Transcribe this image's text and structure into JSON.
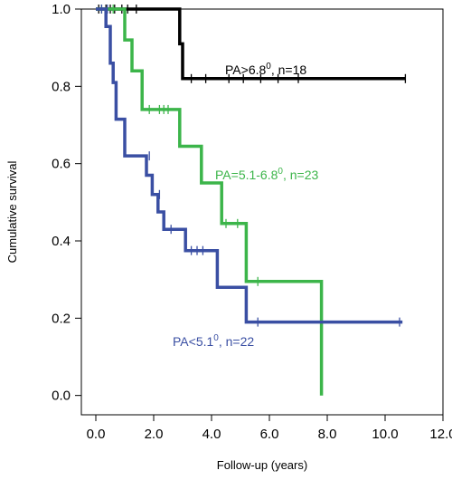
{
  "chart_data": {
    "type": "line",
    "step": true,
    "xlabel": "Follow-up (years)",
    "ylabel": "Cumulative survival",
    "xlim": [
      -0.5,
      12.0
    ],
    "ylim": [
      -0.05,
      1.0
    ],
    "x_ticks": [
      "0.0",
      "2.0",
      "4.0",
      "6.0",
      "8.0",
      "10.0",
      "12.0"
    ],
    "y_ticks": [
      "0.0",
      "0.2",
      "0.4",
      "0.6",
      "0.8",
      "1.0"
    ],
    "grid": false,
    "series": [
      {
        "name": "PA>6.8⁰, n=18",
        "label_main": "PA>6.8",
        "label_sup": "0",
        "label_tail": ", n=18",
        "color": "#000000",
        "steps": [
          [
            0.0,
            1.0
          ],
          [
            2.9,
            1.0
          ],
          [
            2.9,
            0.91
          ],
          [
            3.0,
            0.91
          ],
          [
            3.0,
            0.82
          ],
          [
            10.7,
            0.82
          ]
        ],
        "censored": [
          [
            0.1,
            1.0
          ],
          [
            0.35,
            1.0
          ],
          [
            0.5,
            1.0
          ],
          [
            0.65,
            1.0
          ],
          [
            0.9,
            1.0
          ],
          [
            1.1,
            1.0
          ],
          [
            1.4,
            1.0
          ],
          [
            3.3,
            0.82
          ],
          [
            3.8,
            0.82
          ],
          [
            4.6,
            0.82
          ],
          [
            5.1,
            0.82
          ],
          [
            5.7,
            0.82
          ],
          [
            6.3,
            0.82
          ],
          [
            7.0,
            0.82
          ],
          [
            10.7,
            0.82
          ]
        ]
      },
      {
        "name": "PA=5.1-6.8⁰, n=23",
        "label_main": "PA=5.1-6.8",
        "label_sup": "0",
        "label_tail": ", n=23",
        "color": "#3cb54a",
        "steps": [
          [
            0.0,
            1.0
          ],
          [
            1.0,
            1.0
          ],
          [
            1.0,
            0.92
          ],
          [
            1.25,
            0.92
          ],
          [
            1.25,
            0.84
          ],
          [
            1.6,
            0.84
          ],
          [
            1.6,
            0.74
          ],
          [
            2.9,
            0.74
          ],
          [
            2.9,
            0.645
          ],
          [
            3.65,
            0.645
          ],
          [
            3.65,
            0.55
          ],
          [
            4.35,
            0.55
          ],
          [
            4.35,
            0.445
          ],
          [
            5.2,
            0.445
          ],
          [
            5.2,
            0.295
          ],
          [
            7.8,
            0.295
          ],
          [
            7.8,
            0.0
          ]
        ],
        "censored": [
          [
            0.2,
            1.0
          ],
          [
            0.6,
            1.0
          ],
          [
            1.85,
            0.74
          ],
          [
            2.2,
            0.74
          ],
          [
            2.35,
            0.74
          ],
          [
            2.5,
            0.74
          ],
          [
            4.5,
            0.445
          ],
          [
            4.9,
            0.445
          ],
          [
            5.6,
            0.295
          ]
        ]
      },
      {
        "name": "PA<5.1⁰, n=22",
        "label_main": "PA<5.1",
        "label_sup": "0",
        "label_tail": ", n=22",
        "color": "#3a4fa3",
        "steps": [
          [
            0.0,
            1.0
          ],
          [
            0.35,
            1.0
          ],
          [
            0.35,
            0.955
          ],
          [
            0.5,
            0.955
          ],
          [
            0.5,
            0.86
          ],
          [
            0.6,
            0.86
          ],
          [
            0.6,
            0.81
          ],
          [
            0.7,
            0.81
          ],
          [
            0.7,
            0.715
          ],
          [
            1.0,
            0.715
          ],
          [
            1.0,
            0.62
          ],
          [
            1.75,
            0.62
          ],
          [
            1.75,
            0.57
          ],
          [
            1.95,
            0.57
          ],
          [
            1.95,
            0.52
          ],
          [
            2.15,
            0.52
          ],
          [
            2.15,
            0.475
          ],
          [
            2.35,
            0.475
          ],
          [
            2.35,
            0.43
          ],
          [
            3.1,
            0.43
          ],
          [
            3.1,
            0.375
          ],
          [
            4.2,
            0.375
          ],
          [
            4.2,
            0.28
          ],
          [
            5.2,
            0.28
          ],
          [
            5.2,
            0.19
          ],
          [
            10.6,
            0.19
          ]
        ],
        "censored": [
          [
            0.2,
            1.0
          ],
          [
            0.4,
            1.0
          ],
          [
            1.85,
            0.62
          ],
          [
            2.2,
            0.52
          ],
          [
            2.6,
            0.43
          ],
          [
            3.3,
            0.375
          ],
          [
            3.5,
            0.375
          ],
          [
            3.7,
            0.375
          ],
          [
            5.6,
            0.19
          ],
          [
            10.5,
            0.19
          ]
        ]
      }
    ]
  }
}
